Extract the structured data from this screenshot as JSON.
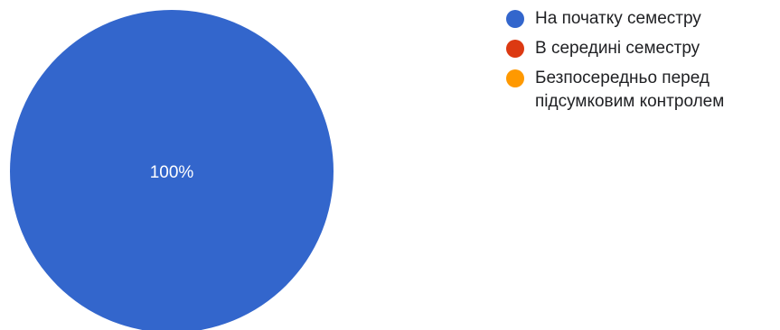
{
  "chart_data": {
    "type": "pie",
    "categories": [
      "На початку семестру",
      "В середині семестру",
      "Безпосередньо перед підсумковим контролем"
    ],
    "values": [
      100,
      0,
      0
    ],
    "colors": [
      "#3366cc",
      "#dc3912",
      "#ff9900"
    ],
    "slice_labels": [
      "100%",
      "",
      ""
    ],
    "legend_position": "right"
  }
}
